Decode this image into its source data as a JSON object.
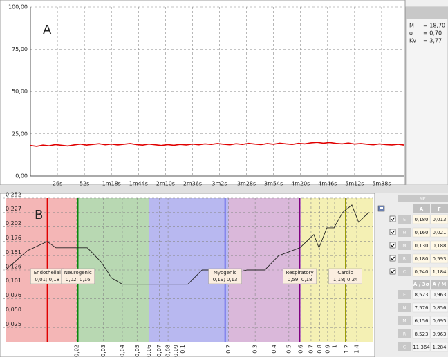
{
  "chart_data": [
    {
      "type": "line",
      "label": "A",
      "x": [
        0,
        6,
        12,
        18,
        24,
        30,
        36,
        42,
        48,
        54,
        60,
        66,
        72,
        78,
        84,
        90,
        96,
        102,
        108,
        114,
        120,
        126,
        132,
        138,
        144,
        150,
        156,
        162,
        168,
        174,
        180,
        186,
        192,
        198,
        204,
        210,
        216,
        222,
        228,
        234,
        240,
        246,
        252,
        258,
        264,
        270,
        276,
        282,
        288,
        294,
        300,
        306,
        312,
        318,
        324,
        330,
        336,
        342,
        348,
        354,
        360
      ],
      "series": [
        {
          "color": "#e00000",
          "values": [
            18.1,
            17.6,
            18.3,
            17.9,
            18.6,
            18.2,
            17.8,
            18.4,
            18.9,
            18.3,
            18.7,
            19.1,
            18.5,
            18.9,
            18.4,
            18.8,
            19.2,
            18.6,
            18.3,
            18.9,
            18.5,
            18.1,
            18.6,
            18.2,
            18.7,
            18.4,
            18.9,
            18.5,
            19.0,
            18.7,
            19.2,
            18.8,
            18.5,
            19.1,
            18.7,
            19.3,
            18.9,
            18.6,
            19.2,
            18.8,
            19.4,
            19.0,
            18.7,
            19.3,
            19.0,
            19.6,
            19.9,
            19.4,
            19.8,
            19.3,
            19.0,
            19.5,
            18.9,
            19.2,
            18.8,
            18.5,
            19.0,
            18.6,
            18.4,
            18.8,
            18.3
          ]
        }
      ],
      "xlim": [
        0,
        360
      ],
      "xticks": [
        {
          "value": 26,
          "label": "26s"
        },
        {
          "value": 52,
          "label": "52s"
        },
        {
          "value": 78,
          "label": "1m18s"
        },
        {
          "value": 104,
          "label": "1m44s"
        },
        {
          "value": 130,
          "label": "2m10s"
        },
        {
          "value": 156,
          "label": "2m36s"
        },
        {
          "value": 182,
          "label": "3m2s"
        },
        {
          "value": 208,
          "label": "3m28s"
        },
        {
          "value": 234,
          "label": "3m54s"
        },
        {
          "value": 260,
          "label": "4m20s"
        },
        {
          "value": 286,
          "label": "4m46s"
        },
        {
          "value": 312,
          "label": "5m12s"
        },
        {
          "value": 338,
          "label": "5m38s"
        }
      ],
      "ylim": [
        0,
        100
      ],
      "yticks": [
        {
          "value": 0,
          "label": "0,00"
        },
        {
          "value": 25,
          "label": "25,00"
        },
        {
          "value": 50,
          "label": "50,00"
        },
        {
          "value": 75,
          "label": "75,00"
        },
        {
          "value": 100,
          "label": "100,00"
        }
      ],
      "grid": true
    },
    {
      "type": "line",
      "label": "B",
      "log_x": true,
      "x": [
        0.0068,
        0.0095,
        0.0128,
        0.0146,
        0.0235,
        0.029,
        0.034,
        0.04,
        0.108,
        0.134,
        0.183,
        0.214,
        0.265,
        0.347,
        0.428,
        0.59,
        0.73,
        0.79,
        0.89,
        0.99,
        1.13,
        1.3,
        1.44,
        1.68
      ],
      "series": [
        {
          "color": "#222222",
          "values": [
            0.126,
            0.16,
            0.176,
            0.165,
            0.165,
            0.14,
            0.112,
            0.101,
            0.101,
            0.126,
            0.126,
            0.12,
            0.126,
            0.126,
            0.151,
            0.165,
            0.188,
            0.165,
            0.2,
            0.2,
            0.227,
            0.24,
            0.21,
            0.227
          ]
        }
      ],
      "xlim": [
        0.0068,
        1.8
      ],
      "xticks": [
        {
          "value": 0.02,
          "label": "0,02"
        },
        {
          "value": 0.03,
          "label": "0,03"
        },
        {
          "value": 0.04,
          "label": "0,04"
        },
        {
          "value": 0.05,
          "label": "0,05"
        },
        {
          "value": 0.06,
          "label": "0,06"
        },
        {
          "value": 0.07,
          "label": "0,07"
        },
        {
          "value": 0.08,
          "label": "0,08"
        },
        {
          "value": 0.09,
          "label": "0,09"
        },
        {
          "value": 0.1,
          "label": "0,1"
        },
        {
          "value": 0.2,
          "label": "0,2"
        },
        {
          "value": 0.3,
          "label": "0,3"
        },
        {
          "value": 0.4,
          "label": "0,4"
        },
        {
          "value": 0.5,
          "label": "0,5"
        },
        {
          "value": 0.6,
          "label": "0,6"
        },
        {
          "value": 0.7,
          "label": "0,7"
        },
        {
          "value": 0.8,
          "label": "0,8"
        },
        {
          "value": 0.9,
          "label": "0,9"
        },
        1,
        {
          "value": 1.2,
          "label": "1,2"
        },
        {
          "value": 1.4,
          "label": "1,4"
        }
      ],
      "ylim": [
        0,
        0.252
      ],
      "yticks": [
        {
          "value": 0.025,
          "label": "0,025"
        },
        {
          "value": 0.05,
          "label": "0,050"
        },
        {
          "value": 0.076,
          "label": "0,076"
        },
        {
          "value": 0.101,
          "label": "0,101"
        },
        {
          "value": 0.126,
          "label": "0,126"
        },
        {
          "value": 0.151,
          "label": "0,151"
        },
        {
          "value": 0.176,
          "label": "0,176"
        },
        {
          "value": 0.202,
          "label": "0,202"
        },
        {
          "value": 0.227,
          "label": "0,227"
        },
        {
          "value": 0.252,
          "label": "0,252"
        }
      ],
      "grid": true,
      "bands": [
        {
          "name": "Endothelial",
          "label": "0,01; 0,18",
          "from": 0.0068,
          "to": 0.02,
          "peak": 0.0128,
          "color": "#f4b6b6",
          "line_color": "#e00000"
        },
        {
          "name": "Neurogenic",
          "label": "0,02; 0,16",
          "from": 0.02,
          "to": 0.06,
          "peak": 0.0204,
          "color": "#b8d8b2",
          "line_color": "#008000"
        },
        {
          "name": "Myogenic",
          "label": "0,19; 0,13",
          "from": 0.06,
          "to": 0.2,
          "peak": 0.19,
          "color": "#b8b8f0",
          "line_color": "#0000e0"
        },
        {
          "name": "Respiratory",
          "label": "0,59; 0,18",
          "from": 0.2,
          "to": 0.6,
          "peak": 0.59,
          "color": "#dab8da",
          "line_color": "#800080"
        },
        {
          "name": "Cardio",
          "label": "1,18; 0,24",
          "from": 0.6,
          "to": 1.8,
          "peak": 1.18,
          "color": "#f4f0b4",
          "line_color": "#999900"
        }
      ]
    }
  ],
  "stats": [
    {
      "name": "M",
      "value": "= 18,70"
    },
    {
      "name": "σ",
      "value": "= 0,70"
    },
    {
      "name": "Kv",
      "value": "= 3,77"
    }
  ],
  "mp_table": {
    "title": "MP",
    "header1": [
      "A",
      "F"
    ],
    "rows1": [
      [
        "E",
        "0,180",
        "0,013"
      ],
      [
        "N",
        "0,160",
        "0,021"
      ],
      [
        "M",
        "0,130",
        "0,188"
      ],
      [
        "R",
        "0,180",
        "0,593"
      ],
      [
        "C",
        "0,240",
        "1,184"
      ]
    ],
    "header2": [
      "A / 3σ",
      "A / M"
    ],
    "rows2": [
      [
        "E",
        "8,523",
        "0,963"
      ],
      [
        "N",
        "7,576",
        "0,856"
      ],
      [
        "M",
        "6,156",
        "0,695"
      ],
      [
        "R",
        "8,523",
        "0,963"
      ],
      [
        "C",
        "11,364",
        "1,284"
      ]
    ]
  }
}
